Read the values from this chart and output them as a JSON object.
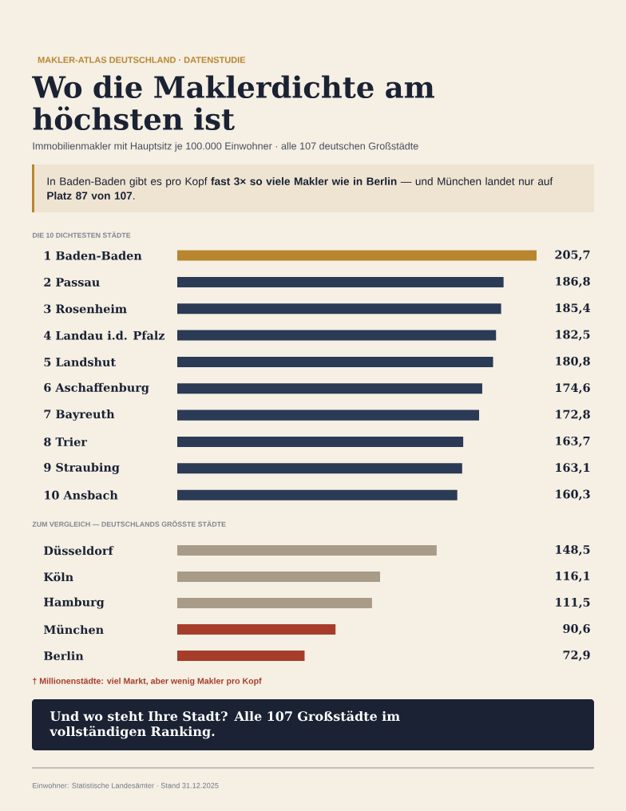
{
  "chart_data": [
    {
      "type": "other",
      "title": "Wo die Maklerdichte am höchsten ist",
      "subtitle": "Immobilienmakler mit Hauptsitz je 100.000 Einwohner · alle 107 deutschen Großstädte",
      "annotations": [
        "MAKLER-ATLAS DEUTSCHLAND · DATENSTUDIE",
        "In Baden-Baden gibt es pro Kopf **fast 3× so viele Makler wie in Berlin** — und München landet nur auf **Platz 87 von 107**."
      ]
    },
    {
      "type": "bar",
      "orientation": "horizontal",
      "title": "DIE 10 DICHTESTEN STÄDTE",
      "categories": [
        "1 Baden-Baden",
        "2 Passau",
        "3 Rosenheim",
        "4 Landau i.d. Pfalz",
        "5 Landshut",
        "6 Aschaffenburg",
        "7 Bayreuth",
        "8 Trier",
        "9 Straubing",
        "10 Ansbach"
      ],
      "values": [
        205.7,
        186.8,
        185.4,
        182.5,
        180.8,
        174.6,
        172.8,
        163.7,
        163.1,
        160.3
      ],
      "value_labels": [
        "205,7",
        "186,8",
        "185,4",
        "182,5",
        "180,8",
        "174,6",
        "172,8",
        "163,7",
        "163,1",
        "160,3"
      ],
      "colors": [
        "#b8862f",
        "#2b3a55",
        "#2b3a55",
        "#2b3a55",
        "#2b3a55",
        "#2b3a55",
        "#2b3a55",
        "#2b3a55",
        "#2b3a55",
        "#2b3a55"
      ]
    },
    {
      "type": "bar",
      "orientation": "horizontal",
      "title": "ZUM VERGLEICH — DEUTSCHLANDS GRÖSSTE STÄDTE",
      "categories": [
        "Düsseldorf",
        "Köln",
        "Hamburg",
        "München",
        "Berlin"
      ],
      "values": [
        148.5,
        116.1,
        111.5,
        90.6,
        72.9
      ],
      "value_labels": [
        "148,5",
        "116,1",
        "111,5",
        "90,6",
        "72,9"
      ],
      "colors": [
        "#a89c88",
        "#a89c88",
        "#a89c88",
        "#a63d2a",
        "#a63d2a"
      ],
      "annotations": [
        "† Millionenstädte: viel Markt, aber wenig Makler pro Kopf"
      ]
    },
    {
      "type": "other",
      "title": "Und wo steht **Ihre Stadt**? Alle 107 Großstädte im vollständigen Ranking.",
      "annotations": [
        "Einwohner: Statistische Landesämter · Stand 31.12.2025"
      ]
    }
  ]
}
